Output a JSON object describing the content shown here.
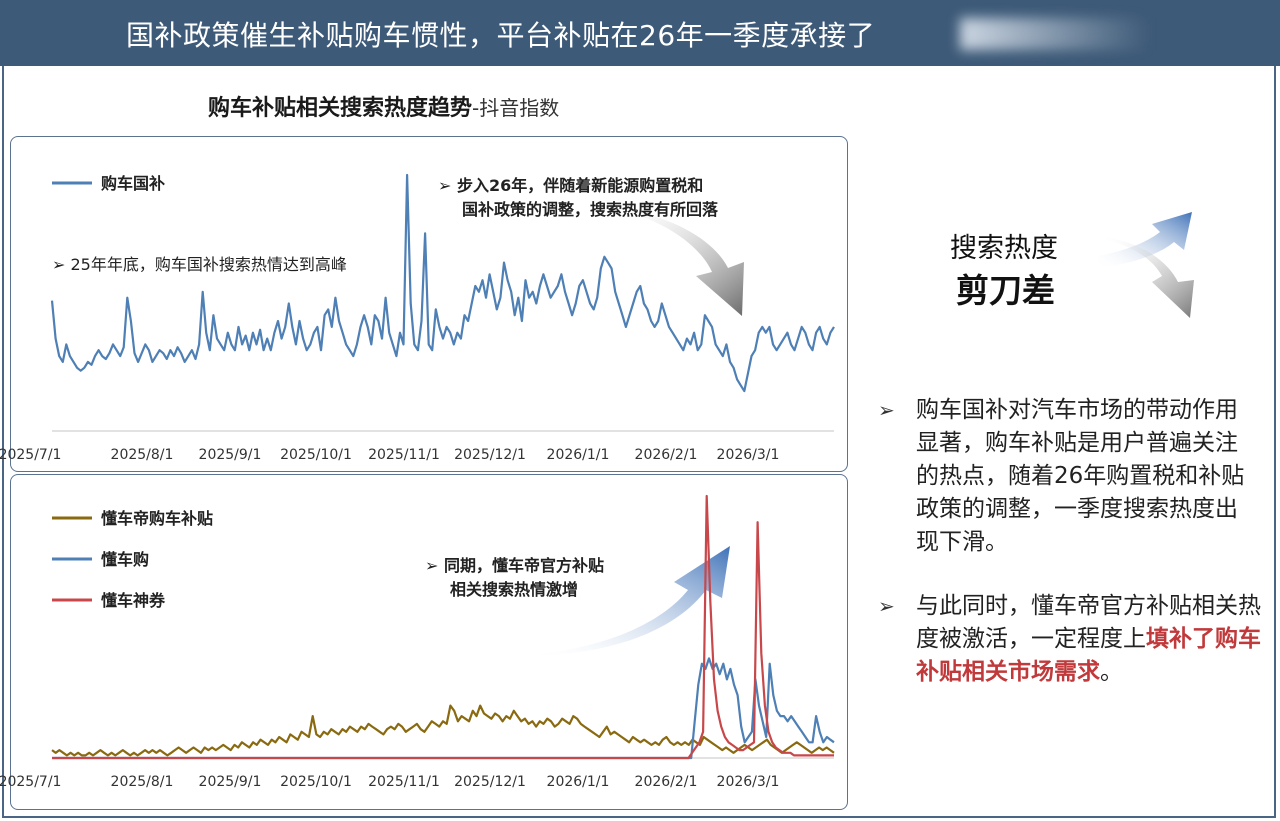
{
  "header": {
    "title": "国补政策催生补贴购车惯性，平台补贴在26年一季度承接了"
  },
  "chart_title": {
    "main": "购车补贴相关搜索热度趋势",
    "sub": "-抖音指数"
  },
  "colors": {
    "header_bg": "#3d5a78",
    "blue": "#4e7fb5",
    "gold": "#8a6a10",
    "red": "#c8474a",
    "highlight": "#c0393b",
    "panel_border": "#5b7290"
  },
  "chart_data": [
    {
      "type": "line",
      "title": "",
      "x_ticks": [
        "2025/7/1",
        "2025/8/1",
        "2025/9/1",
        "2025/10/1",
        "2025/11/1",
        "2025/12/1",
        "2026/1/1",
        "2026/2/1",
        "2026/3/1"
      ],
      "x_range": [
        "2025-07-01",
        "2026-03-31"
      ],
      "y_range": [
        0,
        100
      ],
      "grid": false,
      "legend": "top-left",
      "annotations": [
        "25年年底，购车国补搜索热情达到高峰",
        "步入26年，伴随着新能源购置税和",
        "国补政策的调整，搜索热度有所回落"
      ],
      "series": [
        {
          "name": "购车国补",
          "color": "#4e7fb5",
          "values": [
            45,
            32,
            26,
            24,
            30,
            26,
            24,
            22,
            21,
            22,
            24,
            23,
            26,
            28,
            26,
            25,
            27,
            30,
            28,
            26,
            29,
            46,
            38,
            27,
            24,
            27,
            30,
            28,
            24,
            26,
            28,
            27,
            25,
            28,
            26,
            29,
            27,
            24,
            26,
            28,
            25,
            30,
            48,
            34,
            28,
            40,
            32,
            30,
            28,
            34,
            30,
            28,
            36,
            30,
            33,
            28,
            34,
            30,
            35,
            28,
            32,
            28,
            34,
            38,
            32,
            36,
            44,
            36,
            30,
            38,
            32,
            28,
            30,
            34,
            36,
            28,
            40,
            42,
            36,
            46,
            38,
            34,
            30,
            28,
            26,
            30,
            36,
            40,
            36,
            30,
            40,
            38,
            32,
            46,
            34,
            30,
            26,
            34,
            30,
            88,
            44,
            30,
            28,
            38,
            68,
            30,
            28,
            42,
            36,
            32,
            36,
            34,
            30,
            34,
            32,
            40,
            38,
            44,
            50,
            48,
            52,
            46,
            54,
            48,
            42,
            46,
            58,
            52,
            48,
            40,
            46,
            38,
            52,
            46,
            48,
            44,
            50,
            54,
            50,
            46,
            48,
            50,
            54,
            48,
            44,
            40,
            44,
            50,
            52,
            48,
            44,
            42,
            46,
            56,
            60,
            58,
            56,
            48,
            44,
            40,
            36,
            40,
            44,
            48,
            50,
            44,
            42,
            38,
            36,
            38,
            44,
            40,
            36,
            34,
            32,
            30,
            28,
            32,
            30,
            34,
            28,
            30,
            40,
            38,
            36,
            30,
            28,
            26,
            30,
            24,
            22,
            18,
            16,
            14,
            20,
            26,
            28,
            34,
            36,
            34,
            36,
            30,
            28,
            30,
            32,
            34,
            30,
            28,
            32,
            36,
            34,
            30,
            28,
            34,
            36,
            32,
            30,
            34,
            36
          ]
        }
      ]
    },
    {
      "type": "line",
      "title": "",
      "x_ticks": [
        "2025/7/1",
        "2025/8/1",
        "2025/9/1",
        "2025/10/1",
        "2025/11/1",
        "2025/12/1",
        "2026/1/1",
        "2026/2/1",
        "2026/3/1"
      ],
      "x_range": [
        "2025-07-01",
        "2026-03-31"
      ],
      "y_range": [
        0,
        100
      ],
      "grid": false,
      "legend": "top-left",
      "annotations": [
        "同期，懂车帝官方补贴",
        "相关搜索热情激增"
      ],
      "series": [
        {
          "name": "懂车帝购车补贴",
          "color": "#8a6a10",
          "values": [
            3,
            2,
            3,
            2,
            1,
            2,
            1,
            2,
            1,
            1,
            2,
            1,
            2,
            3,
            2,
            1,
            2,
            1,
            2,
            3,
            2,
            1,
            2,
            1,
            2,
            3,
            2,
            3,
            2,
            3,
            2,
            1,
            2,
            3,
            4,
            3,
            2,
            3,
            4,
            3,
            2,
            4,
            3,
            4,
            3,
            4,
            5,
            4,
            3,
            5,
            4,
            6,
            5,
            4,
            6,
            5,
            7,
            6,
            5,
            7,
            6,
            8,
            7,
            6,
            9,
            8,
            7,
            10,
            9,
            8,
            16,
            9,
            8,
            10,
            9,
            11,
            10,
            9,
            11,
            10,
            12,
            11,
            10,
            12,
            11,
            13,
            12,
            11,
            10,
            9,
            11,
            12,
            11,
            13,
            12,
            10,
            11,
            12,
            13,
            11,
            10,
            12,
            14,
            13,
            12,
            14,
            13,
            20,
            18,
            14,
            16,
            15,
            14,
            18,
            16,
            20,
            17,
            16,
            15,
            17,
            16,
            14,
            16,
            15,
            18,
            16,
            14,
            15,
            13,
            14,
            12,
            14,
            13,
            15,
            14,
            12,
            13,
            15,
            14,
            13,
            16,
            15,
            13,
            12,
            11,
            10,
            9,
            8,
            10,
            12,
            9,
            10,
            9,
            8,
            7,
            6,
            8,
            7,
            6,
            7,
            6,
            5,
            6,
            5,
            7,
            8,
            6,
            5,
            6,
            5,
            6,
            5,
            7,
            6,
            5,
            8,
            7,
            6,
            5,
            4,
            3,
            4,
            3,
            2,
            3,
            4,
            5,
            4,
            3,
            4,
            5,
            6,
            7,
            5,
            4,
            3,
            2,
            3,
            4,
            5,
            6,
            5,
            4,
            3,
            2,
            3,
            4,
            3,
            4,
            3,
            2
          ]
        },
        {
          "name": "懂车购",
          "color": "#4e7fb5",
          "values": [
            0,
            0,
            0,
            0,
            0,
            0,
            0,
            0,
            0,
            0,
            0,
            0,
            0,
            0,
            0,
            0,
            0,
            0,
            0,
            0,
            0,
            0,
            0,
            0,
            0,
            0,
            0,
            0,
            0,
            0,
            0,
            0,
            0,
            0,
            0,
            0,
            0,
            0,
            0,
            0,
            0,
            0,
            0,
            0,
            0,
            0,
            0,
            0,
            0,
            0,
            0,
            0,
            0,
            0,
            0,
            0,
            0,
            0,
            0,
            0,
            0,
            0,
            0,
            0,
            0,
            0,
            0,
            0,
            0,
            0,
            0,
            0,
            0,
            0,
            0,
            0,
            0,
            0,
            0,
            0,
            0,
            0,
            0,
            0,
            0,
            0,
            0,
            0,
            0,
            0,
            0,
            0,
            0,
            0,
            0,
            0,
            0,
            0,
            0,
            0,
            0,
            0,
            0,
            0,
            0,
            0,
            0,
            0,
            0,
            0,
            0,
            0,
            0,
            0,
            0,
            0,
            0,
            0,
            0,
            0,
            0,
            0,
            0,
            0,
            0,
            0,
            0,
            0,
            0,
            0,
            0,
            0,
            0,
            0,
            0,
            0,
            0,
            0,
            0,
            0,
            0,
            0,
            0,
            0,
            0,
            0,
            0,
            0,
            0,
            0,
            0,
            0,
            0,
            0,
            0,
            0,
            0,
            0,
            0,
            0,
            0,
            0,
            0,
            0,
            0,
            0,
            0,
            0,
            0,
            0,
            0,
            0,
            0,
            0,
            0,
            0,
            0,
            0,
            0,
            0,
            14,
            28,
            36,
            34,
            38,
            34,
            36,
            32,
            36,
            30,
            34,
            28,
            24,
            12,
            6,
            8,
            10,
            30,
            20,
            14,
            8,
            36,
            24,
            18,
            16,
            16,
            14,
            16,
            14,
            12,
            10,
            8,
            6,
            6,
            16,
            10,
            6,
            8,
            7,
            6
          ]
        },
        {
          "name": "懂车神券",
          "color": "#c8474a",
          "values": [
            0,
            0,
            0,
            0,
            0,
            0,
            0,
            0,
            0,
            0,
            0,
            0,
            0,
            0,
            0,
            0,
            0,
            0,
            0,
            0,
            0,
            0,
            0,
            0,
            0,
            0,
            0,
            0,
            0,
            0,
            0,
            0,
            0,
            0,
            0,
            0,
            0,
            0,
            0,
            0,
            0,
            0,
            0,
            0,
            0,
            0,
            0,
            0,
            0,
            0,
            0,
            0,
            0,
            0,
            0,
            0,
            0,
            0,
            0,
            0,
            0,
            0,
            0,
            0,
            0,
            0,
            0,
            0,
            0,
            0,
            0,
            0,
            0,
            0,
            0,
            0,
            0,
            0,
            0,
            0,
            0,
            0,
            0,
            0,
            0,
            0,
            0,
            0,
            0,
            0,
            0,
            0,
            0,
            0,
            0,
            0,
            0,
            0,
            0,
            0,
            0,
            0,
            0,
            0,
            0,
            0,
            0,
            0,
            0,
            0,
            0,
            0,
            0,
            0,
            0,
            0,
            0,
            0,
            0,
            0,
            0,
            0,
            0,
            0,
            0,
            0,
            0,
            0,
            0,
            0,
            0,
            0,
            0,
            0,
            0,
            0,
            0,
            0,
            0,
            0,
            0,
            0,
            0,
            0,
            0,
            0,
            0,
            0,
            0,
            0,
            0,
            0,
            0,
            0,
            0,
            0,
            0,
            0,
            0,
            0,
            0,
            0,
            0,
            0,
            0,
            0,
            0,
            0,
            0,
            0,
            0,
            0,
            0,
            0,
            0,
            0,
            2,
            4,
            6,
            10,
            100,
            60,
            30,
            18,
            12,
            8,
            6,
            5,
            4,
            3,
            3,
            4,
            5,
            6,
            90,
            40,
            20,
            10,
            6,
            4,
            3,
            2,
            2,
            2,
            1,
            1,
            1,
            1,
            1,
            1,
            1,
            1,
            1,
            1,
            1,
            1
          ]
        }
      ]
    }
  ],
  "scissor": {
    "line1": "搜索热度",
    "line2": "剪刀差"
  },
  "bullets": {
    "b1": "购车国补对汽车市场的带动作用显著，购车补贴是用户普遍关注的热点，随着26年购置税和补贴政策的调整，一季度搜索热度出现下滑。",
    "b2_pre": "与此同时，懂车帝官方补贴相关热度被激活，一定程度上",
    "b2_hl": "填补了购车补贴相关市场需求",
    "b2_post": "。"
  },
  "icons": {
    "bullet": "hollow-arrow-icon",
    "trend_up": "arrow-up-right-icon",
    "trend_down": "arrow-down-right-icon"
  }
}
